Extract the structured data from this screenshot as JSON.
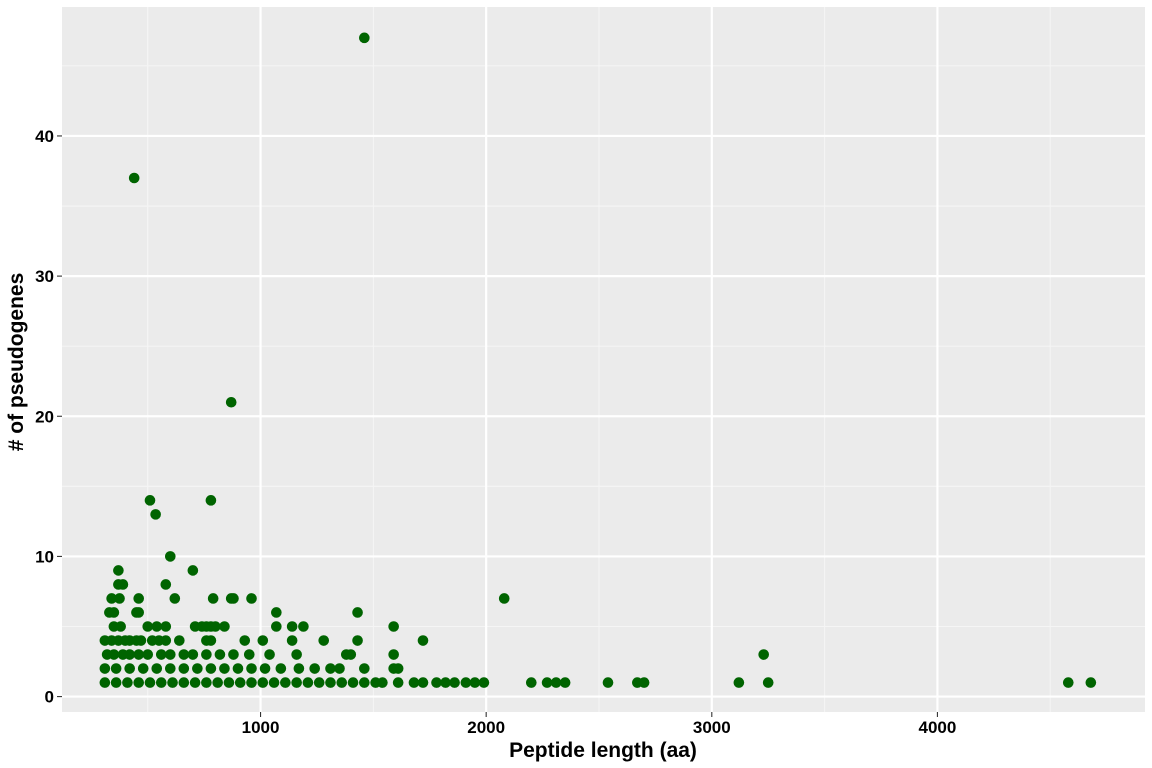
{
  "chart_data": {
    "type": "scatter",
    "title": "",
    "xlabel": "Peptide length (aa)",
    "ylabel": "# of pseudogenes",
    "xlim": [
      120,
      4920
    ],
    "ylim": [
      -1.1,
      49.2
    ],
    "x_ticks": [
      1000,
      2000,
      3000,
      4000
    ],
    "x_tick_labels": [
      "1000",
      "2000",
      "3000",
      "4000"
    ],
    "y_ticks": [
      0,
      10,
      20,
      30,
      40
    ],
    "y_tick_labels": [
      "0",
      "10",
      "20",
      "30",
      "40"
    ],
    "grid": true,
    "legend": "none",
    "colors": {
      "point": "#006400",
      "panel_background": "#EBEBEB",
      "grid_major": "#FFFFFF",
      "grid_minor": "#F5F5F5"
    },
    "series": [
      {
        "points": [
          [
            1460,
            47
          ],
          [
            440,
            37
          ],
          [
            870,
            21
          ],
          [
            510,
            14
          ],
          [
            780,
            14
          ],
          [
            535,
            13
          ],
          [
            600,
            10
          ],
          [
            370,
            9
          ],
          [
            700,
            9
          ],
          [
            370,
            8
          ],
          [
            390,
            8
          ],
          [
            580,
            8
          ],
          [
            340,
            7
          ],
          [
            375,
            7
          ],
          [
            460,
            7
          ],
          [
            620,
            7
          ],
          [
            790,
            7
          ],
          [
            870,
            7
          ],
          [
            880,
            7
          ],
          [
            960,
            7
          ],
          [
            2080,
            7
          ],
          [
            330,
            6
          ],
          [
            350,
            6
          ],
          [
            450,
            6
          ],
          [
            460,
            6
          ],
          [
            1070,
            6
          ],
          [
            1430,
            6
          ],
          [
            350,
            5
          ],
          [
            380,
            5
          ],
          [
            500,
            5
          ],
          [
            540,
            5
          ],
          [
            580,
            5
          ],
          [
            710,
            5
          ],
          [
            740,
            5
          ],
          [
            760,
            5
          ],
          [
            780,
            5
          ],
          [
            800,
            5
          ],
          [
            840,
            5
          ],
          [
            1070,
            5
          ],
          [
            1140,
            5
          ],
          [
            1190,
            5
          ],
          [
            1590,
            5
          ],
          [
            310,
            4
          ],
          [
            340,
            4
          ],
          [
            370,
            4
          ],
          [
            400,
            4
          ],
          [
            420,
            4
          ],
          [
            450,
            4
          ],
          [
            470,
            4
          ],
          [
            520,
            4
          ],
          [
            550,
            4
          ],
          [
            580,
            4
          ],
          [
            640,
            4
          ],
          [
            760,
            4
          ],
          [
            780,
            4
          ],
          [
            930,
            4
          ],
          [
            1010,
            4
          ],
          [
            1140,
            4
          ],
          [
            1280,
            4
          ],
          [
            1430,
            4
          ],
          [
            1720,
            4
          ],
          [
            320,
            3
          ],
          [
            350,
            3
          ],
          [
            390,
            3
          ],
          [
            420,
            3
          ],
          [
            460,
            3
          ],
          [
            500,
            3
          ],
          [
            560,
            3
          ],
          [
            600,
            3
          ],
          [
            660,
            3
          ],
          [
            700,
            3
          ],
          [
            760,
            3
          ],
          [
            820,
            3
          ],
          [
            880,
            3
          ],
          [
            950,
            3
          ],
          [
            1040,
            3
          ],
          [
            1160,
            3
          ],
          [
            1380,
            3
          ],
          [
            1400,
            3
          ],
          [
            1590,
            3
          ],
          [
            3230,
            3
          ],
          [
            310,
            2
          ],
          [
            360,
            2
          ],
          [
            420,
            2
          ],
          [
            480,
            2
          ],
          [
            540,
            2
          ],
          [
            600,
            2
          ],
          [
            660,
            2
          ],
          [
            720,
            2
          ],
          [
            780,
            2
          ],
          [
            840,
            2
          ],
          [
            900,
            2
          ],
          [
            960,
            2
          ],
          [
            1020,
            2
          ],
          [
            1090,
            2
          ],
          [
            1170,
            2
          ],
          [
            1240,
            2
          ],
          [
            1310,
            2
          ],
          [
            1350,
            2
          ],
          [
            1460,
            2
          ],
          [
            1590,
            2
          ],
          [
            1610,
            2
          ],
          [
            310,
            1
          ],
          [
            360,
            1
          ],
          [
            410,
            1
          ],
          [
            460,
            1
          ],
          [
            510,
            1
          ],
          [
            560,
            1
          ],
          [
            610,
            1
          ],
          [
            660,
            1
          ],
          [
            710,
            1
          ],
          [
            760,
            1
          ],
          [
            810,
            1
          ],
          [
            860,
            1
          ],
          [
            910,
            1
          ],
          [
            960,
            1
          ],
          [
            1010,
            1
          ],
          [
            1060,
            1
          ],
          [
            1110,
            1
          ],
          [
            1160,
            1
          ],
          [
            1210,
            1
          ],
          [
            1260,
            1
          ],
          [
            1310,
            1
          ],
          [
            1360,
            1
          ],
          [
            1410,
            1
          ],
          [
            1460,
            1
          ],
          [
            1510,
            1
          ],
          [
            1540,
            1
          ],
          [
            1610,
            1
          ],
          [
            1680,
            1
          ],
          [
            1720,
            1
          ],
          [
            1780,
            1
          ],
          [
            1820,
            1
          ],
          [
            1860,
            1
          ],
          [
            1910,
            1
          ],
          [
            1950,
            1
          ],
          [
            1990,
            1
          ],
          [
            2200,
            1
          ],
          [
            2270,
            1
          ],
          [
            2310,
            1
          ],
          [
            2350,
            1
          ],
          [
            2540,
            1
          ],
          [
            2670,
            1
          ],
          [
            2700,
            1
          ],
          [
            3120,
            1
          ],
          [
            3250,
            1
          ],
          [
            4580,
            1
          ],
          [
            4680,
            1
          ]
        ]
      }
    ]
  }
}
